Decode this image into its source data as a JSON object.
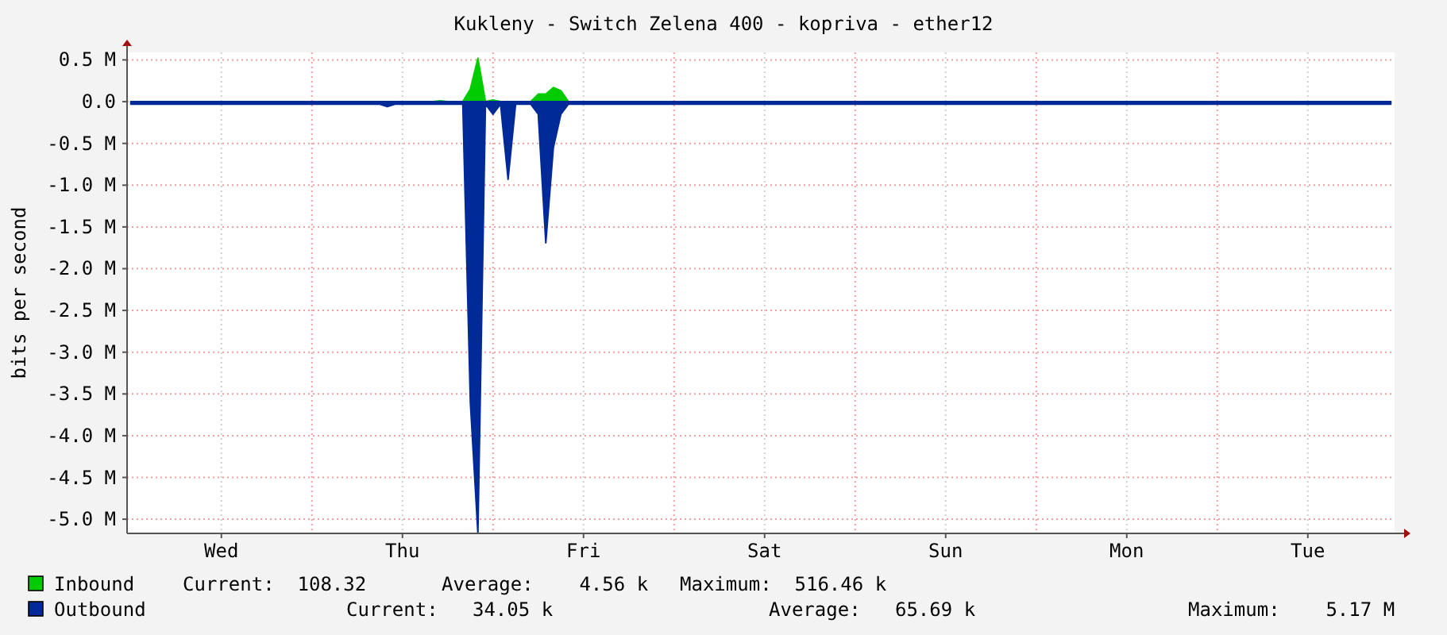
{
  "chart_data": {
    "type": "area",
    "title": "Kukleny - Switch Zelena 400 - kopriva - ether12",
    "ylabel": "bits per second",
    "categories": [
      null,
      null,
      null,
      null,
      null,
      null,
      null,
      null,
      null,
      null,
      null,
      null,
      "Wed",
      null,
      null,
      null,
      null,
      null,
      null,
      null,
      null,
      null,
      null,
      null,
      null,
      null,
      null,
      null,
      null,
      null,
      null,
      null,
      null,
      null,
      null,
      null,
      "Thu",
      null,
      null,
      null,
      null,
      null,
      null,
      null,
      null,
      null,
      null,
      null,
      null,
      null,
      null,
      null,
      null,
      null,
      null,
      null,
      null,
      null,
      null,
      null,
      "Fri",
      null,
      null,
      null,
      null,
      null,
      null,
      null,
      null,
      null,
      null,
      null,
      null,
      null,
      null,
      null,
      null,
      null,
      null,
      null,
      null,
      null,
      null,
      null,
      "Sat",
      null,
      null,
      null,
      null,
      null,
      null,
      null,
      null,
      null,
      null,
      null,
      null,
      null,
      null,
      null,
      null,
      null,
      null,
      null,
      null,
      null,
      null,
      null,
      "Sun",
      null,
      null,
      null,
      null,
      null,
      null,
      null,
      null,
      null,
      null,
      null,
      null,
      null,
      null,
      null,
      null,
      null,
      null,
      null,
      null,
      null,
      null,
      null,
      "Mon",
      null,
      null,
      null,
      null,
      null,
      null,
      null,
      null,
      null,
      null,
      null,
      null,
      null,
      null,
      null,
      null,
      null,
      null,
      null,
      null,
      null,
      null,
      null,
      "Tue",
      null,
      null,
      null,
      null,
      null,
      null,
      null,
      null,
      null,
      null,
      null
    ],
    "ylim": [
      -5170000,
      590000
    ],
    "yticks": [
      {
        "value": 500000,
        "label": "0.5 M"
      },
      {
        "value": 0,
        "label": "0.0"
      },
      {
        "value": -500000,
        "label": "-0.5 M"
      },
      {
        "value": -1000000,
        "label": "-1.0 M"
      },
      {
        "value": -1500000,
        "label": "-1.5 M"
      },
      {
        "value": -2000000,
        "label": "-2.0 M"
      },
      {
        "value": -2500000,
        "label": "-2.5 M"
      },
      {
        "value": -3000000,
        "label": "-3.0 M"
      },
      {
        "value": -3500000,
        "label": "-3.5 M"
      },
      {
        "value": -4000000,
        "label": "-4.0 M"
      },
      {
        "value": -4500000,
        "label": "-4.5 M"
      },
      {
        "value": -5000000,
        "label": "-5.0 M"
      }
    ],
    "grid": true,
    "legend": "bottom",
    "series": [
      {
        "name": "Inbound",
        "color": "#00cc00",
        "values": [
          0,
          0,
          0,
          0,
          0,
          0,
          0,
          0,
          0,
          0,
          0,
          0,
          0,
          0,
          0,
          0,
          0,
          0,
          0,
          0,
          0,
          0,
          0,
          0,
          0,
          0,
          0,
          0,
          0,
          0,
          0,
          0,
          0,
          0,
          0,
          0,
          0,
          0,
          0,
          0,
          0,
          10000,
          0,
          0,
          0,
          150000,
          520000,
          0,
          20000,
          0,
          0,
          0,
          0,
          0,
          90000,
          90000,
          170000,
          130000,
          0,
          0,
          0,
          0,
          0,
          0,
          0,
          0,
          0,
          0,
          0,
          0,
          0,
          0,
          0,
          0,
          0,
          0,
          0,
          0,
          0,
          0,
          0,
          0,
          0,
          0,
          0,
          0,
          0,
          0,
          0,
          0,
          0,
          0,
          0,
          0,
          0,
          0,
          0,
          0,
          0,
          0,
          0,
          0,
          0,
          0,
          0,
          0,
          0,
          0,
          0,
          0,
          0,
          0,
          0,
          0,
          0,
          0,
          0,
          0,
          0,
          0,
          0,
          0,
          0,
          0,
          0,
          0,
          0,
          0,
          0,
          0,
          0,
          0,
          0,
          0,
          0,
          0,
          0,
          0,
          0,
          0,
          0,
          0,
          0,
          0,
          0,
          0,
          0,
          0,
          0,
          0,
          0,
          0,
          0,
          0,
          0,
          0,
          0,
          0,
          0,
          0,
          0,
          0,
          0,
          0,
          0,
          0,
          0,
          0
        ]
      },
      {
        "name": "Outbound",
        "color": "#002a97",
        "values": [
          -30000,
          -30000,
          -30000,
          -30000,
          -30000,
          -30000,
          -30000,
          -30000,
          -30000,
          -30000,
          -30000,
          -30000,
          -30000,
          -30000,
          -30000,
          -30000,
          -30000,
          -30000,
          -30000,
          -30000,
          -30000,
          -30000,
          -30000,
          -30000,
          -30000,
          -30000,
          -30000,
          -30000,
          -30000,
          -30000,
          -30000,
          -30000,
          -30000,
          -30000,
          -60000,
          -30000,
          -30000,
          -30000,
          -30000,
          -30000,
          -30000,
          -30000,
          -30000,
          -30000,
          -30000,
          -3600000,
          -5170000,
          -30000,
          -150000,
          -30000,
          -930000,
          -30000,
          -30000,
          -30000,
          -150000,
          -1690000,
          -550000,
          -150000,
          -30000,
          -30000,
          -30000,
          -30000,
          -30000,
          -30000,
          -30000,
          -30000,
          -30000,
          -30000,
          -30000,
          -30000,
          -30000,
          -30000,
          -30000,
          -30000,
          -30000,
          -30000,
          -30000,
          -30000,
          -30000,
          -30000,
          -30000,
          -30000,
          -30000,
          -30000,
          -30000,
          -30000,
          -30000,
          -30000,
          -30000,
          -30000,
          -30000,
          -30000,
          -30000,
          -30000,
          -30000,
          -30000,
          -30000,
          -30000,
          -30000,
          -30000,
          -30000,
          -30000,
          -30000,
          -30000,
          -30000,
          -30000,
          -30000,
          -30000,
          -30000,
          -30000,
          -30000,
          -30000,
          -30000,
          -30000,
          -30000,
          -30000,
          -30000,
          -30000,
          -30000,
          -30000,
          -30000,
          -30000,
          -30000,
          -30000,
          -30000,
          -30000,
          -30000,
          -30000,
          -30000,
          -30000,
          -30000,
          -30000,
          -30000,
          -30000,
          -30000,
          -30000,
          -30000,
          -30000,
          -30000,
          -30000,
          -30000,
          -30000,
          -30000,
          -30000,
          -30000,
          -30000,
          -30000,
          -30000,
          -30000,
          -30000,
          -30000,
          -30000,
          -30000,
          -30000,
          -30000,
          -30000,
          -30000,
          -30000,
          -30000,
          -30000,
          -30000,
          -30000,
          -30000,
          -30000,
          -30000,
          -30000,
          -30000,
          -30000
        ]
      }
    ],
    "annotations": [
      "Current:  108.32",
      "Average:    4.56 k",
      "Maximum:  516.46 k",
      "Current:   34.05 k",
      "Average:   65.69 k",
      "Maximum:    5.17 M"
    ]
  }
}
